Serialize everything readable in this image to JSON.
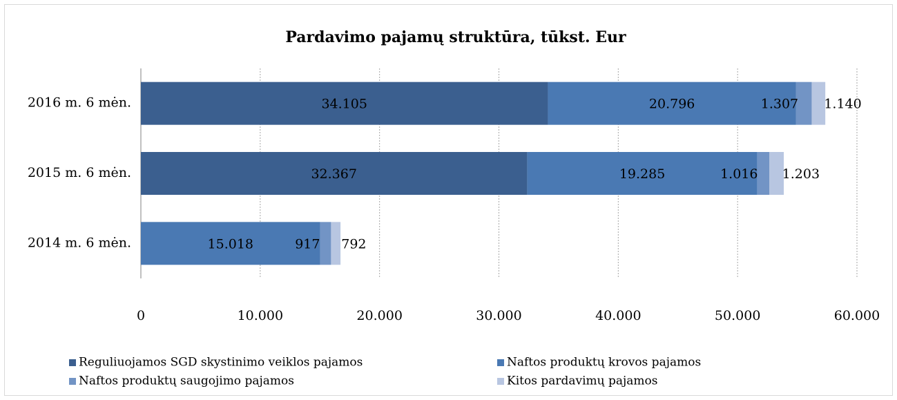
{
  "chart_data": {
    "type": "stacked-barh",
    "title": "Pardavimo pajamų struktūra, tūkst. Eur",
    "categories": [
      "2016 m. 6 mėn.",
      "2015 m. 6 mėn.",
      "2014 m. 6 mėn."
    ],
    "series": [
      {
        "name": "Reguliuojamos SGD skystinimo veiklos pajamos",
        "color": "#3b5f8f",
        "values": [
          34105,
          32367,
          null
        ],
        "value_labels": [
          "34.105",
          "32.367",
          null
        ]
      },
      {
        "name": "Naftos produktų krovos pajamos",
        "color": "#4a79b3",
        "values": [
          20796,
          19285,
          15018
        ],
        "value_labels": [
          "20.796",
          "19.285",
          "15.018"
        ]
      },
      {
        "name": "Naftos produktų saugojimo pajamos",
        "color": "#7294c5",
        "values": [
          1307,
          1016,
          917
        ],
        "value_labels": [
          "1.307",
          "1.016",
          "917"
        ]
      },
      {
        "name": "Kitos pardavimų pajamos",
        "color": "#b8c6e1",
        "values": [
          1140,
          1203,
          792
        ],
        "value_labels": [
          "1.140",
          "1.203",
          "792"
        ]
      }
    ],
    "xlim": [
      0,
      60000
    ],
    "xticks": [
      0,
      {
        "value": 10000,
        "label": "10.000"
      },
      {
        "value": 20000,
        "label": "20.000"
      },
      {
        "value": 30000,
        "label": "30.000"
      },
      {
        "value": 40000,
        "label": "40.000"
      },
      {
        "value": 50000,
        "label": "50.000"
      },
      {
        "value": 60000,
        "label": "60.000"
      }
    ],
    "grid": true
  }
}
